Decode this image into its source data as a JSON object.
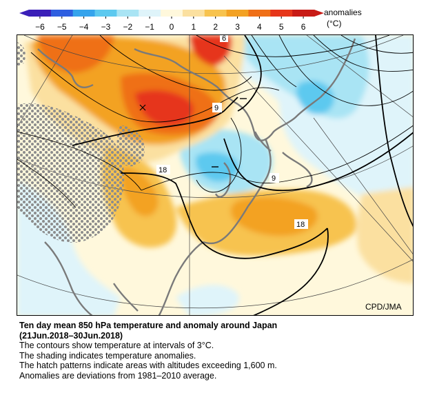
{
  "legend": {
    "title": "anomalies",
    "unit": "(°C)",
    "ticks": [
      "−6",
      "−5",
      "−4",
      "−3",
      "−2",
      "−1",
      "0",
      "1",
      "2",
      "3",
      "4",
      "5",
      "6"
    ],
    "colors": [
      "#3a1fb8",
      "#2f5fe0",
      "#36a4ec",
      "#5dc9ef",
      "#a9e4f4",
      "#dff4fa",
      "#fff8dc",
      "#fbe0a0",
      "#f7c34f",
      "#f3a224",
      "#ef6f17",
      "#e6361a",
      "#c81b16"
    ]
  },
  "map": {
    "credit": "CPD/JMA",
    "contour_labels": [
      "9",
      "9",
      "18",
      "18",
      "6"
    ]
  },
  "caption": {
    "title": "Ten day mean 850 hPa temperature and anomaly around Japan",
    "period": "(21Jun.2018–30Jun.2018)",
    "lines": [
      "The contours show temperature at intervals of 3°C.",
      "The shading indicates temperature anomalies.",
      "The hatch patterns indicate areas with altitudes exceeding 1,600 m.",
      "Anomalies are deviations from 1981–2010 average."
    ]
  }
}
